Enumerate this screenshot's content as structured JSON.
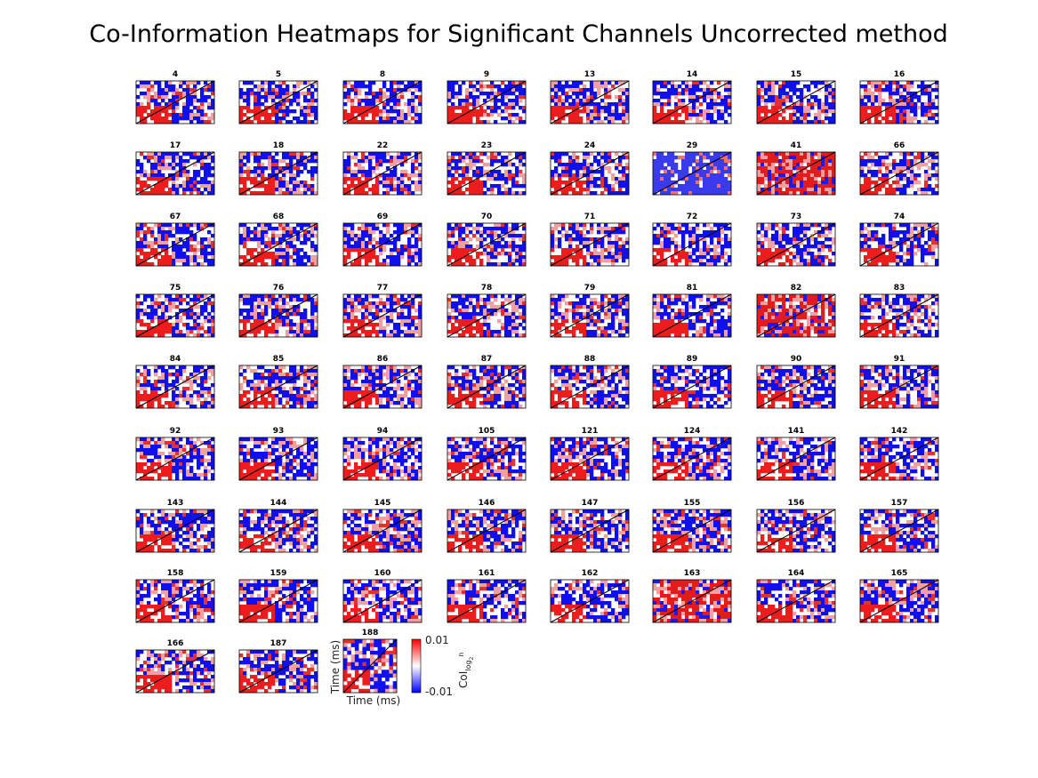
{
  "chart_data": {
    "type": "heatmap",
    "title": "Co-Information Heatmaps for Significant Channels Uncorrected method",
    "panels": [
      "4",
      "5",
      "8",
      "9",
      "13",
      "14",
      "15",
      "16",
      "17",
      "18",
      "22",
      "23",
      "24",
      "29",
      "41",
      "66",
      "67",
      "68",
      "69",
      "70",
      "71",
      "72",
      "73",
      "74",
      "75",
      "76",
      "77",
      "78",
      "79",
      "81",
      "82",
      "83",
      "84",
      "85",
      "86",
      "87",
      "88",
      "89",
      "90",
      "91",
      "92",
      "93",
      "94",
      "105",
      "121",
      "124",
      "141",
      "142",
      "143",
      "144",
      "145",
      "146",
      "147",
      "155",
      "156",
      "157",
      "158",
      "159",
      "160",
      "161",
      "162",
      "163",
      "164",
      "165",
      "166",
      "187",
      "188"
    ],
    "grid": {
      "columns": 8,
      "rows": 9
    },
    "xlabel": "Time (ms)",
    "ylabel": "Time (ms)",
    "colorbar": {
      "label_main": "CoI",
      "label_sub": "log",
      "label_subsub": "2",
      "label_tail": "n",
      "max_label": "0.01",
      "min_label": "-0.01",
      "range": [
        -0.01,
        0.01
      ],
      "colors": [
        "#0000ff",
        "#ffffff",
        "#ff0000"
      ]
    }
  }
}
